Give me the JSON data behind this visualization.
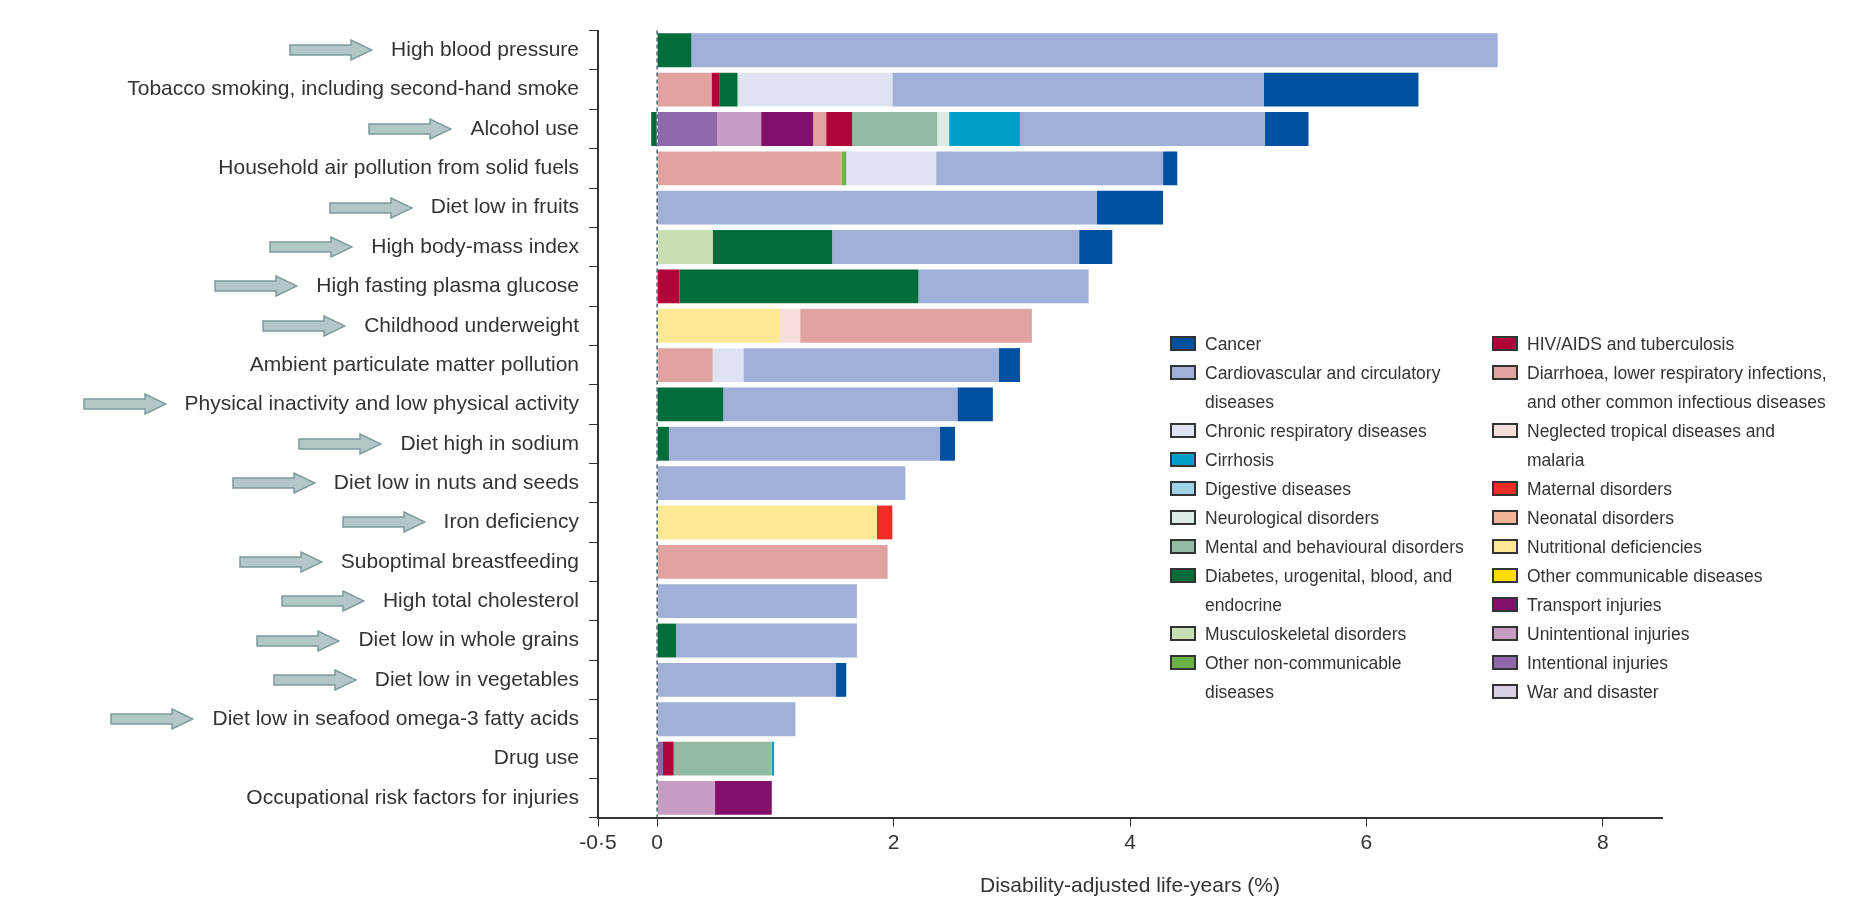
{
  "chart_data": {
    "type": "bar",
    "orientation": "horizontal",
    "stacked": true,
    "xlabel": "Disability-adjusted life-years (%)",
    "categories": [
      "High blood pressure",
      "Tobacco smoking, including second-hand smoke",
      "Alcohol use",
      "Household air pollution from solid fuels",
      "Diet low in fruits",
      "High body-mass index",
      "High fasting plasma glucose",
      "Childhood underweight",
      "Ambient particulate matter pollution",
      "Physical inactivity and low physical activity",
      "Diet high in sodium",
      "Diet low in nuts and seeds",
      "Iron deficiency",
      "Suboptimal breastfeeding",
      "High total cholesterol",
      "Diet low in whole grains",
      "Diet low in vegetables",
      "Diet low in seafood omega-3 fatty acids",
      "Drug use",
      "Occupational risk factors for injuries"
    ],
    "xlim": [
      -0.5,
      8.5
    ],
    "xticks": [
      {
        "value": -0.5,
        "label": "-0·5"
      },
      0,
      2,
      4,
      6,
      8
    ],
    "legend": "bottom right",
    "ref_lines": [
      {
        "axis": "x",
        "value": 0,
        "color": "#4a6670",
        "line_style": "dashed"
      }
    ],
    "series": [
      {
        "name": "Intentional injuries",
        "color": "#9069ad",
        "values": [
          null,
          null,
          0.51,
          null,
          null,
          null,
          null,
          null,
          null,
          null,
          null,
          null,
          null,
          null,
          null,
          null,
          null,
          null,
          0.05,
          null
        ]
      },
      {
        "name": "Unintentional injuries",
        "color": "#c59dc2",
        "values": [
          null,
          null,
          0.37,
          null,
          null,
          null,
          null,
          null,
          null,
          null,
          null,
          null,
          null,
          null,
          null,
          null,
          null,
          null,
          null,
          0.49
        ]
      },
      {
        "name": "Transport injuries",
        "color": "#82106b",
        "values": [
          null,
          null,
          0.44,
          null,
          null,
          null,
          null,
          null,
          null,
          null,
          null,
          null,
          null,
          null,
          null,
          null,
          null,
          null,
          null,
          0.48
        ]
      },
      {
        "name": "Nutritional deficiencies",
        "color": "#fde994",
        "values": [
          null,
          null,
          null,
          null,
          null,
          null,
          null,
          1.04,
          null,
          null,
          null,
          null,
          1.86,
          null,
          null,
          null,
          null,
          null,
          null,
          null
        ]
      },
      {
        "name": "Neglected tropical diseases and malaria",
        "color": "#f5dedd",
        "values": [
          null,
          null,
          null,
          null,
          null,
          null,
          null,
          0.17,
          null,
          null,
          null,
          null,
          null,
          null,
          null,
          null,
          null,
          null,
          null,
          null
        ]
      },
      {
        "name": "Diarrhoea, lower respiratory infections, and other common infectious diseases",
        "color": "#e0a3a0",
        "values": [
          null,
          0.46,
          0.11,
          1.56,
          null,
          null,
          null,
          1.96,
          0.47,
          null,
          null,
          null,
          null,
          1.95,
          null,
          null,
          null,
          null,
          null,
          null
        ]
      },
      {
        "name": "Maternal disorders",
        "color": "#ee2e24",
        "values": [
          null,
          null,
          null,
          null,
          null,
          null,
          null,
          null,
          null,
          null,
          null,
          null,
          0.13,
          null,
          null,
          null,
          null,
          null,
          null,
          null
        ]
      },
      {
        "name": "Neonatal disorders",
        "color": "#f2b397",
        "values": [
          null,
          null,
          null,
          null,
          null,
          null,
          null,
          null,
          null,
          null,
          null,
          null,
          null,
          null,
          null,
          null,
          null,
          null,
          null,
          null
        ]
      },
      {
        "name": "HIV/AIDS and tuberculosis",
        "color": "#b0053a",
        "values": [
          null,
          0.07,
          0.22,
          null,
          null,
          null,
          0.19,
          null,
          null,
          null,
          null,
          null,
          null,
          null,
          null,
          null,
          null,
          null,
          0.09,
          null
        ]
      },
      {
        "name": "Other communicable diseases",
        "color": "#ffdd00",
        "values": [
          null,
          null,
          null,
          null,
          null,
          null,
          null,
          null,
          null,
          null,
          null,
          null,
          null,
          null,
          null,
          null,
          null,
          null,
          null,
          null
        ]
      },
      {
        "name": "War and disaster",
        "color": "#d9cfe6",
        "values": [
          null,
          null,
          null,
          null,
          null,
          null,
          null,
          null,
          null,
          null,
          null,
          null,
          null,
          null,
          null,
          null,
          null,
          null,
          null,
          null
        ]
      },
      {
        "name": "Musculoskeletal disorders",
        "color": "#c8dfb4",
        "values": [
          null,
          null,
          null,
          null,
          null,
          0.47,
          null,
          null,
          null,
          null,
          null,
          null,
          null,
          null,
          null,
          null,
          null,
          null,
          null,
          null
        ]
      },
      {
        "name": "Diabetes, urogenital, blood, and endocrine",
        "color": "#006d3a",
        "values": [
          0.29,
          0.15,
          -0.05,
          null,
          null,
          1.01,
          2.02,
          null,
          null,
          0.56,
          0.1,
          null,
          null,
          null,
          null,
          0.16,
          null,
          null,
          null,
          null
        ]
      },
      {
        "name": "Mental and behavioural disorders",
        "color": "#93bba3",
        "values": [
          null,
          null,
          0.72,
          null,
          null,
          null,
          null,
          null,
          null,
          null,
          null,
          null,
          null,
          null,
          null,
          null,
          null,
          null,
          0.83,
          null
        ]
      },
      {
        "name": "Neurological disorders",
        "color": "#dcebe3",
        "values": [
          null,
          null,
          0.1,
          null,
          null,
          null,
          null,
          null,
          null,
          null,
          null,
          null,
          null,
          null,
          null,
          null,
          null,
          null,
          null,
          null
        ]
      },
      {
        "name": "Other non-communicable diseases",
        "color": "#6ab344",
        "values": [
          null,
          null,
          null,
          0.04,
          null,
          null,
          null,
          null,
          null,
          null,
          null,
          null,
          null,
          null,
          null,
          null,
          null,
          null,
          null,
          null
        ]
      },
      {
        "name": "Chronic respiratory diseases",
        "color": "#dfe2f1",
        "values": [
          null,
          1.31,
          null,
          0.76,
          null,
          null,
          null,
          null,
          0.26,
          null,
          null,
          null,
          null,
          null,
          null,
          null,
          null,
          null,
          null,
          null
        ]
      },
      {
        "name": "Digestive diseases",
        "color": "#9fd4e8",
        "values": [
          null,
          null,
          null,
          null,
          null,
          null,
          null,
          null,
          null,
          null,
          null,
          null,
          null,
          null,
          null,
          null,
          null,
          null,
          null,
          null
        ]
      },
      {
        "name": "Cirrhosis",
        "color": "#009fc8",
        "values": [
          null,
          null,
          0.6,
          null,
          null,
          null,
          null,
          null,
          null,
          null,
          null,
          null,
          null,
          null,
          null,
          null,
          null,
          null,
          0.02,
          null
        ]
      },
      {
        "name": "Cardiovascular and circulatory diseases",
        "color": "#9fafd7",
        "values": [
          6.82,
          3.14,
          2.07,
          1.92,
          3.72,
          2.09,
          1.44,
          null,
          2.16,
          1.98,
          2.29,
          2.1,
          null,
          null,
          1.69,
          1.53,
          1.51,
          1.17,
          null,
          null
        ]
      },
      {
        "name": "Cancer",
        "color": "#0050a0",
        "values": [
          null,
          1.31,
          0.37,
          0.12,
          0.56,
          0.28,
          null,
          null,
          0.18,
          0.3,
          0.13,
          null,
          null,
          null,
          null,
          null,
          0.09,
          null,
          null,
          null
        ]
      }
    ]
  }
}
